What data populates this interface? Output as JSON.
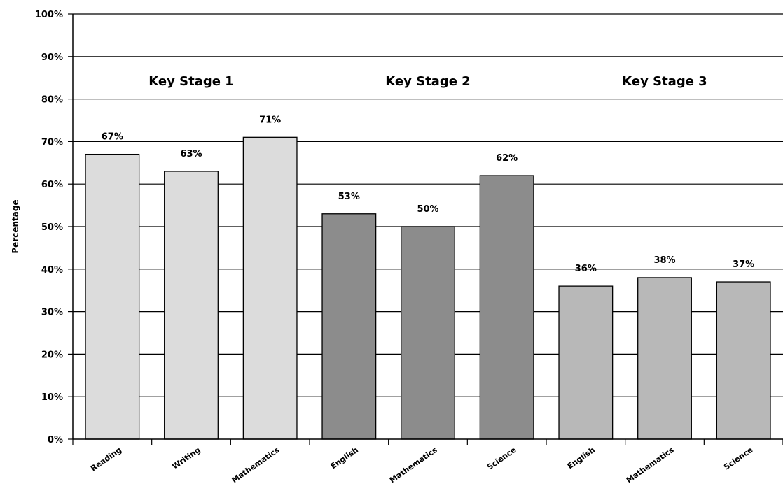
{
  "chart_data": {
    "type": "bar",
    "ylabel": "Percentage",
    "xlabel": "",
    "ylim": [
      0,
      100
    ],
    "y_ticks": [
      "0%",
      "10%",
      "20%",
      "30%",
      "40%",
      "50%",
      "60%",
      "70%",
      "80%",
      "90%",
      "100%"
    ],
    "grid": true,
    "groups": [
      {
        "name": "Key Stage 1",
        "color": "#dcdcdc",
        "categories": [
          "Reading",
          "Writing",
          "Mathematics"
        ],
        "values": [
          67,
          63,
          71
        ],
        "value_labels": [
          "67%",
          "63%",
          "71%"
        ]
      },
      {
        "name": "Key Stage 2",
        "color": "#8c8c8c",
        "categories": [
          "English",
          "Mathematics",
          "Science"
        ],
        "values": [
          53,
          50,
          62
        ],
        "value_labels": [
          "53%",
          "50%",
          "62%"
        ]
      },
      {
        "name": "Key Stage 3",
        "color": "#b8b8b8",
        "categories": [
          "English",
          "Mathematics",
          "Science"
        ],
        "values": [
          36,
          38,
          37
        ],
        "value_labels": [
          "36%",
          "38%",
          "37%"
        ]
      }
    ]
  }
}
